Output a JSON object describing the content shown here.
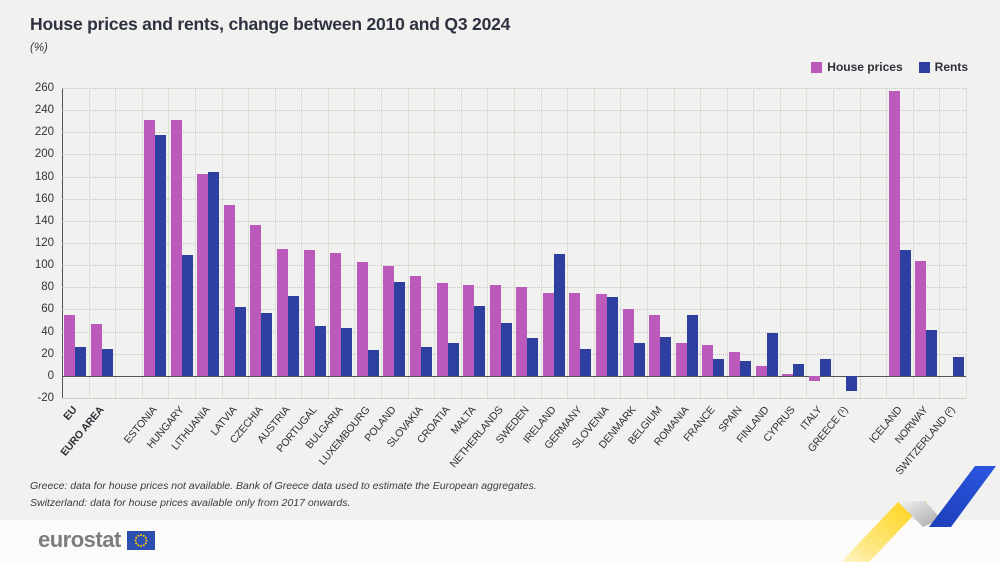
{
  "header": {
    "title": "House prices and rents, change between 2010 and Q3 2024",
    "subtitle": "(%)"
  },
  "legend": {
    "items": [
      {
        "label": "House prices",
        "color": "#bb5abb"
      },
      {
        "label": "Rents",
        "color": "#2d3f9f"
      }
    ]
  },
  "chart_data": {
    "type": "bar",
    "title": "House prices and rents, change between 2010 and Q3 2024",
    "ylabel": "(%)",
    "ylim": [
      -20,
      260
    ],
    "ytick_step": 20,
    "grid": true,
    "legend_position": "top-right",
    "categories": [
      "EU",
      "EURO AREA",
      "ESTONIA",
      "HUNGARY",
      "LITHUANIA",
      "LATVIA",
      "CZECHIA",
      "AUSTRIA",
      "PORTUGAL",
      "BULGARIA",
      "LUXEMBOURG",
      "POLAND",
      "SLOVAKIA",
      "CROATIA",
      "MALTA",
      "NETHERLANDS",
      "SWEDEN",
      "IRELAND",
      "GERMANY",
      "SLOVENIA",
      "DENMARK",
      "BELGIUM",
      "ROMANIA",
      "FRANCE",
      "SPAIN",
      "FINLAND",
      "CYPRUS",
      "ITALY",
      "GREECE (¹)",
      "ICELAND",
      "NORWAY",
      "SWITZERLAND (²)"
    ],
    "bold_categories": [
      "EU",
      "EURO AREA"
    ],
    "spacer_after": [
      "EURO AREA",
      "GREECE (¹)"
    ],
    "series": [
      {
        "name": "House prices",
        "color": "#bb5abb",
        "values": [
          55,
          47,
          231,
          231,
          182,
          154,
          136,
          115,
          114,
          111,
          103,
          99,
          90,
          84,
          82,
          82,
          80,
          75,
          75,
          74,
          60,
          55,
          30,
          28,
          22,
          9,
          2,
          -5,
          null,
          257,
          104,
          null
        ]
      },
      {
        "name": "Rents",
        "color": "#2d3f9f",
        "values": [
          26,
          24,
          218,
          109,
          184,
          62,
          57,
          72,
          45,
          43,
          23,
          85,
          26,
          30,
          63,
          48,
          34,
          110,
          24,
          71,
          30,
          35,
          55,
          15,
          13,
          39,
          11,
          15,
          -14,
          114,
          41,
          17
        ]
      }
    ]
  },
  "footnotes": [
    "Greece: data for house prices not available. Bank of Greece data used to estimate the European aggregates.",
    "Switzerland: data for house prices available only from 2017 onwards."
  ],
  "footer": {
    "logo_text": "eurostat"
  }
}
